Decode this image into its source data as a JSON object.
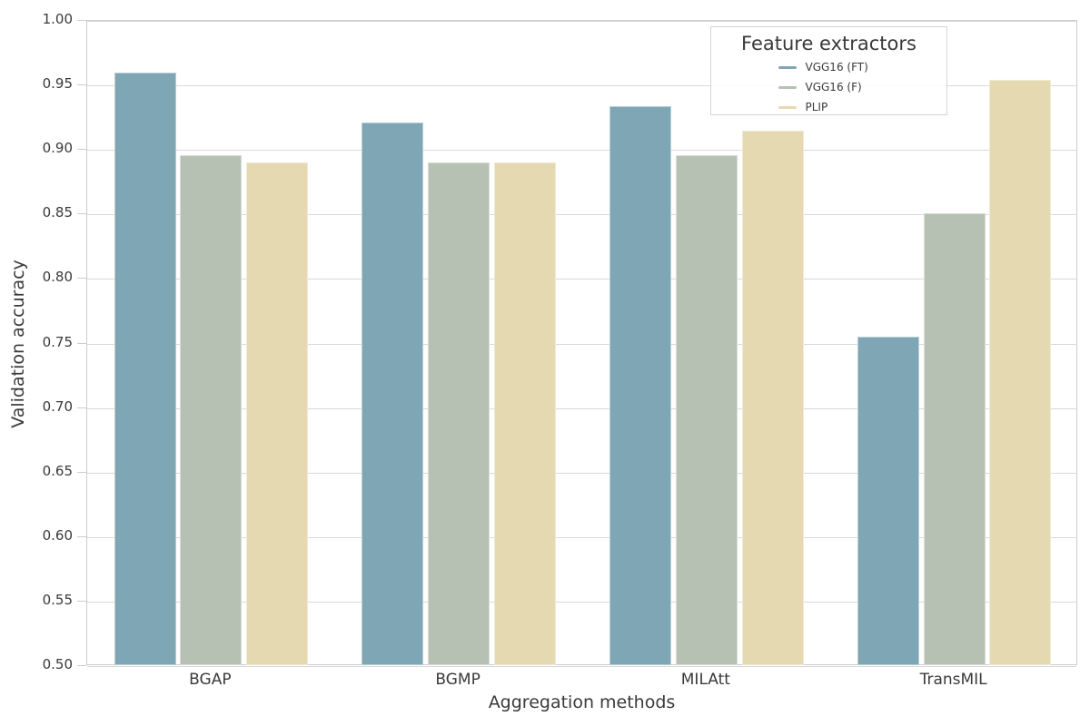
{
  "chart_data": {
    "type": "bar",
    "title": "",
    "xlabel": "Aggregation methods",
    "ylabel": "Validation accuracy",
    "categories": [
      "BGAP",
      "BGMP",
      "MILAtt",
      "TransMIL"
    ],
    "series": [
      {
        "name": "VGG16 (FT)",
        "color": "#7fa6b5",
        "values": [
          0.96,
          0.921,
          0.934,
          0.755
        ]
      },
      {
        "name": "VGG16 (F)",
        "color": "#b6c1b4",
        "values": [
          0.896,
          0.89,
          0.896,
          0.851
        ]
      },
      {
        "name": "PLIP",
        "color": "#e5d9b2",
        "values": [
          0.89,
          0.89,
          0.915,
          0.954
        ]
      }
    ],
    "ylim": [
      0.5,
      1.0
    ],
    "ytick_step": 0.05,
    "yticks": [
      "1.00",
      "0.95",
      "0.90",
      "0.85",
      "0.80",
      "0.75",
      "0.70",
      "0.65",
      "0.60",
      "0.55",
      "0.50"
    ],
    "legend_title": "Feature extractors",
    "legend_position": "upper right",
    "grid": true,
    "colors": {
      "gridline": "#d9d9d9",
      "spine": "#cccccc",
      "text": "#3a3a3a",
      "background": "#ffffff"
    }
  }
}
